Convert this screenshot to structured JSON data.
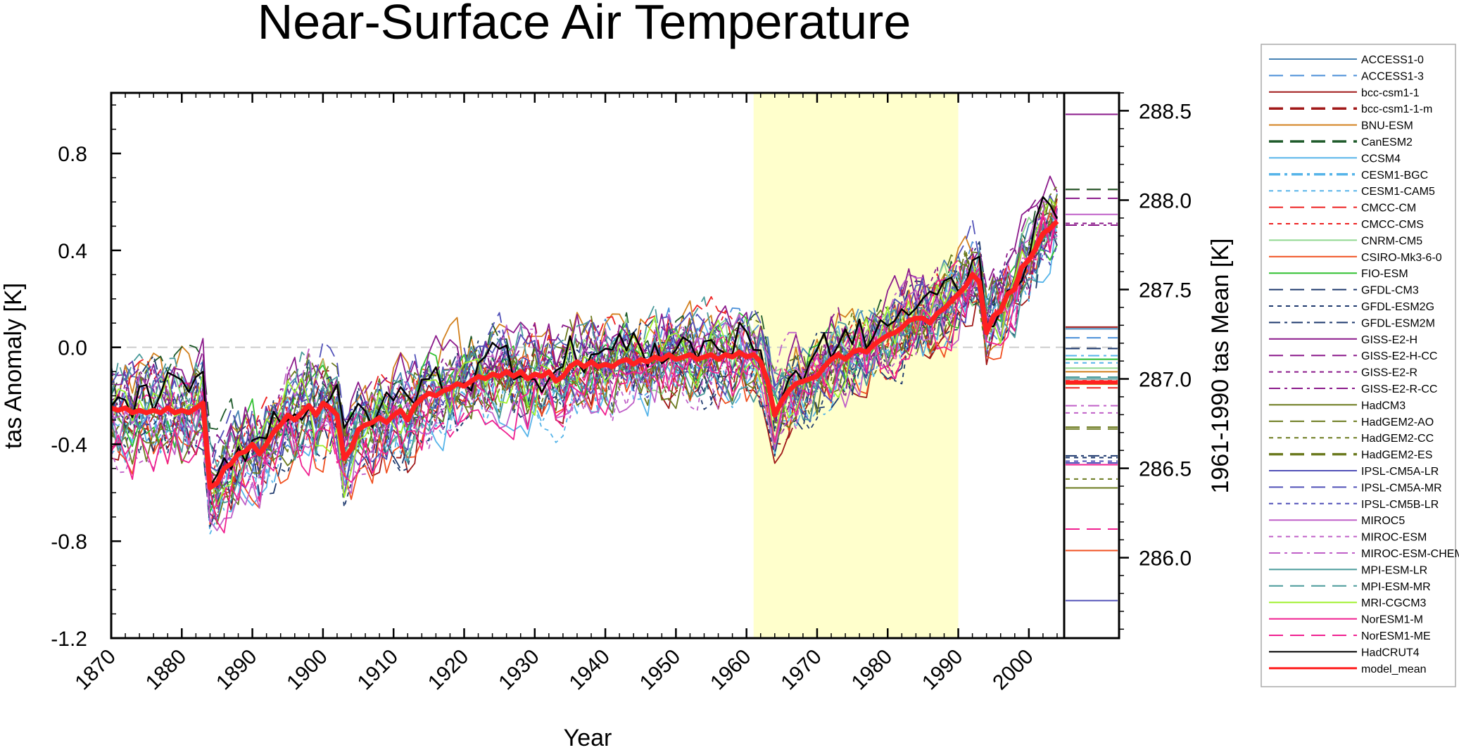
{
  "chart_data": {
    "type": "line",
    "title": "Near-Surface Air Temperature",
    "xlabel": "Year",
    "ylabel": "tas Anomaly [K]",
    "ylabel_right": "1961-1990 tas Mean [K]",
    "xlim": [
      1870,
      2005
    ],
    "ylim": [
      -1.2,
      1.05
    ],
    "ylim_right": [
      285.55,
      288.6
    ],
    "x_ticks": [
      "1870",
      "1880",
      "1890",
      "1900",
      "1910",
      "1920",
      "1930",
      "1940",
      "1950",
      "1960",
      "1970",
      "1980",
      "1990",
      "2000"
    ],
    "y_ticks": [
      "0.8",
      "0.4",
      "0.0",
      "-0.4",
      "-0.8",
      "-1.2"
    ],
    "y_ticks_right": [
      "288.5",
      "288.0",
      "287.5",
      "287.0",
      "286.5",
      "286.0"
    ],
    "reference_period": [
      1961,
      1990
    ],
    "reference_period_color": "#ffffcc",
    "zero_line": 0.0,
    "grid": false,
    "legend_position": "right",
    "model_mean": {
      "name": "model_mean",
      "color": "#ff2020",
      "x": [
        1870,
        1871,
        1872,
        1873,
        1874,
        1875,
        1876,
        1877,
        1878,
        1879,
        1880,
        1881,
        1882,
        1883,
        1884,
        1885,
        1886,
        1887,
        1888,
        1889,
        1890,
        1891,
        1892,
        1893,
        1894,
        1895,
        1896,
        1897,
        1898,
        1899,
        1900,
        1901,
        1902,
        1903,
        1904,
        1905,
        1906,
        1907,
        1908,
        1909,
        1910,
        1911,
        1912,
        1913,
        1914,
        1915,
        1916,
        1917,
        1918,
        1919,
        1920,
        1921,
        1922,
        1923,
        1924,
        1925,
        1926,
        1927,
        1928,
        1929,
        1930,
        1931,
        1932,
        1933,
        1934,
        1935,
        1936,
        1937,
        1938,
        1939,
        1940,
        1941,
        1942,
        1943,
        1944,
        1945,
        1946,
        1947,
        1948,
        1949,
        1950,
        1951,
        1952,
        1953,
        1954,
        1955,
        1956,
        1957,
        1958,
        1959,
        1960,
        1961,
        1962,
        1963,
        1964,
        1965,
        1966,
        1967,
        1968,
        1969,
        1970,
        1971,
        1972,
        1973,
        1974,
        1975,
        1976,
        1977,
        1978,
        1979,
        1980,
        1981,
        1982,
        1983,
        1984,
        1985,
        1986,
        1987,
        1988,
        1989,
        1990,
        1991,
        1992,
        1993,
        1994,
        1995,
        1996,
        1997,
        1998,
        1999,
        2000,
        2001,
        2002,
        2003,
        2004
      ],
      "values": [
        -0.25,
        -0.26,
        -0.25,
        -0.27,
        -0.26,
        -0.27,
        -0.26,
        -0.27,
        -0.25,
        -0.27,
        -0.26,
        -0.27,
        -0.25,
        -0.23,
        -0.58,
        -0.56,
        -0.5,
        -0.48,
        -0.44,
        -0.43,
        -0.4,
        -0.44,
        -0.4,
        -0.35,
        -0.32,
        -0.28,
        -0.3,
        -0.27,
        -0.24,
        -0.28,
        -0.23,
        -0.25,
        -0.28,
        -0.46,
        -0.42,
        -0.34,
        -0.32,
        -0.31,
        -0.29,
        -0.31,
        -0.28,
        -0.26,
        -0.3,
        -0.24,
        -0.21,
        -0.19,
        -0.2,
        -0.18,
        -0.17,
        -0.15,
        -0.16,
        -0.14,
        -0.12,
        -0.13,
        -0.11,
        -0.12,
        -0.1,
        -0.12,
        -0.1,
        -0.13,
        -0.11,
        -0.12,
        -0.1,
        -0.14,
        -0.12,
        -0.08,
        -0.06,
        -0.08,
        -0.06,
        -0.08,
        -0.07,
        -0.08,
        -0.06,
        -0.05,
        -0.07,
        -0.05,
        -0.06,
        -0.04,
        -0.05,
        -0.03,
        -0.05,
        -0.04,
        -0.03,
        -0.05,
        -0.04,
        -0.03,
        -0.05,
        -0.03,
        -0.04,
        -0.02,
        -0.04,
        -0.03,
        -0.06,
        -0.14,
        -0.28,
        -0.22,
        -0.18,
        -0.15,
        -0.14,
        -0.13,
        -0.12,
        -0.08,
        -0.05,
        -0.03,
        -0.05,
        -0.02,
        -0.01,
        -0.02,
        0.01,
        0.03,
        0.05,
        0.06,
        0.08,
        0.11,
        0.12,
        0.12,
        0.1,
        0.14,
        0.16,
        0.19,
        0.22,
        0.25,
        0.3,
        0.27,
        0.06,
        0.13,
        0.15,
        0.22,
        0.24,
        0.33,
        0.36,
        0.41,
        0.47,
        0.49,
        0.52
      ],
      "period_mean": 286.98
    },
    "series": [
      {
        "name": "ACCESS1-0",
        "color": "#4682b4",
        "dash": "solid",
        "period_mean": 287.28
      },
      {
        "name": "ACCESS1-3",
        "color": "#4a8fd8",
        "dash": "long",
        "period_mean": 287.23
      },
      {
        "name": "bcc-csm1-1",
        "color": "#a01818",
        "dash": "solid",
        "period_mean": 287.29
      },
      {
        "name": "bcc-csm1-1-m",
        "color": "#a01818",
        "dash": "long-thick",
        "period_mean": 288.06
      },
      {
        "name": "BNU-ESM",
        "color": "#d2801e",
        "dash": "solid",
        "period_mean": 287.04
      },
      {
        "name": "CanESM2",
        "color": "#1e5a2a",
        "dash": "long-thick",
        "period_mean": 288.06
      },
      {
        "name": "CCSM4",
        "color": "#56b4e9",
        "dash": "solid",
        "period_mean": 287.11
      },
      {
        "name": "CESM1-BGC",
        "color": "#56b4e9",
        "dash": "dashdot-thick",
        "period_mean": 287.13
      },
      {
        "name": "CESM1-CAM5",
        "color": "#56b4e9",
        "dash": "short",
        "period_mean": 287.09
      },
      {
        "name": "CMCC-CM",
        "color": "#ee2222",
        "dash": "long",
        "period_mean": 286.95
      },
      {
        "name": "CMCC-CMS",
        "color": "#ee2222",
        "dash": "short",
        "period_mean": 286.99
      },
      {
        "name": "CNRM-CM5",
        "color": "#90d890",
        "dash": "solid",
        "period_mean": 287.06
      },
      {
        "name": "CSIRO-Mk3-6-0",
        "color": "#f05020",
        "dash": "solid",
        "period_mean": 286.04
      },
      {
        "name": "FIO-ESM",
        "color": "#30c030",
        "dash": "solid",
        "period_mean": 287.11
      },
      {
        "name": "GFDL-CM3",
        "color": "#1f3a6e",
        "dash": "long",
        "period_mean": 287.17
      },
      {
        "name": "GFDL-ESM2G",
        "color": "#1f3a6e",
        "dash": "short",
        "period_mean": 286.56
      },
      {
        "name": "GFDL-ESM2M",
        "color": "#1f3a6e",
        "dash": "dashdot",
        "period_mean": 286.57
      },
      {
        "name": "GISS-E2-H",
        "color": "#8b1a8b",
        "dash": "solid",
        "period_mean": 288.48
      },
      {
        "name": "GISS-E2-H-CC",
        "color": "#8b1a8b",
        "dash": "long",
        "period_mean": 288.01
      },
      {
        "name": "GISS-E2-R",
        "color": "#8b1a8b",
        "dash": "short",
        "period_mean": 287.87
      },
      {
        "name": "GISS-E2-R-CC",
        "color": "#8b1a8b",
        "dash": "dashdot",
        "period_mean": 287.86
      },
      {
        "name": "HadCM3",
        "color": "#6b7a1e",
        "dash": "solid",
        "period_mean": 286.39
      },
      {
        "name": "HadGEM2-AO",
        "color": "#6b7a1e",
        "dash": "long",
        "period_mean": 286.72
      },
      {
        "name": "HadGEM2-CC",
        "color": "#6b7a1e",
        "dash": "short",
        "period_mean": 286.44
      },
      {
        "name": "HadGEM2-ES",
        "color": "#6b7a1e",
        "dash": "long-thick",
        "period_mean": 286.73
      },
      {
        "name": "IPSL-CM5A-LR",
        "color": "#5050b8",
        "dash": "solid",
        "period_mean": 285.76
      },
      {
        "name": "IPSL-CM5A-MR",
        "color": "#5050b8",
        "dash": "long",
        "period_mean": 286.53
      },
      {
        "name": "IPSL-CM5B-LR",
        "color": "#5050b8",
        "dash": "short",
        "period_mean": 286.54
      },
      {
        "name": "MIROC5",
        "color": "#c060c8",
        "dash": "solid",
        "period_mean": 287.92
      },
      {
        "name": "MIROC-ESM",
        "color": "#c060c8",
        "dash": "short",
        "period_mean": 286.81
      },
      {
        "name": "MIROC-ESM-CHEM",
        "color": "#c060c8",
        "dash": "dashdot",
        "period_mean": 286.85
      },
      {
        "name": "MPI-ESM-LR",
        "color": "#4a9a9a",
        "dash": "solid",
        "period_mean": 287.0
      },
      {
        "name": "MPI-ESM-MR",
        "color": "#4a9a9a",
        "dash": "long",
        "period_mean": 287.01
      },
      {
        "name": "MRI-CGCM3",
        "color": "#a0f030",
        "dash": "solid",
        "period_mean": 286.97
      },
      {
        "name": "NorESM1-M",
        "color": "#f02090",
        "dash": "solid",
        "period_mean": 286.52
      },
      {
        "name": "NorESM1-ME",
        "color": "#f02090",
        "dash": "long",
        "period_mean": 286.16
      },
      {
        "name": "HadCRUT4",
        "color": "#000000",
        "dash": "solid"
      },
      {
        "name": "model_mean",
        "color": "#ff2020",
        "dash": "solid"
      }
    ]
  }
}
